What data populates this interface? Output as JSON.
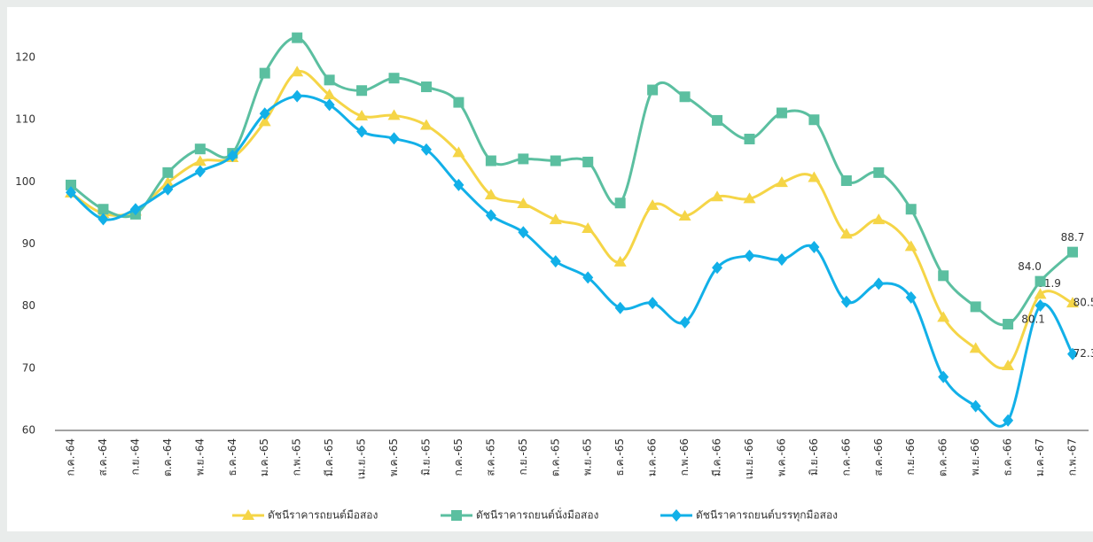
{
  "chart_data": {
    "type": "line",
    "categories": [
      "ก.ค.-64",
      "ส.ค.-64",
      "ก.ย.-64",
      "ต.ค.-64",
      "พ.ย.-64",
      "ธ.ค.-64",
      "ม.ค.-65",
      "ก.พ.-65",
      "มี.ค.-65",
      "เม.ย.-65",
      "พ.ค.-65",
      "มิ.ย.-65",
      "ก.ค.-65",
      "ส.ค.-65",
      "ก.ย.-65",
      "ต.ค.-65",
      "พ.ย.-65",
      "ธ.ค.-65",
      "ม.ค.-66",
      "ก.พ.-66",
      "มี.ค.-66",
      "เม.ย.-66",
      "พ.ค.-66",
      "มิ.ย.-66",
      "ก.ค.-66",
      "ส.ค.-66",
      "ก.ย.-66",
      "ต.ค.-66",
      "พ.ย.-66",
      "ธ.ค.-66",
      "ม.ค.-67",
      "ก.พ.-67"
    ],
    "series": [
      {
        "name": "ดัชนีราคารถยนต์มือสอง",
        "color": "#f5d547",
        "marker": "triangle",
        "values": [
          98.2,
          94.9,
          95.3,
          99.9,
          103.3,
          103.9,
          109.7,
          117.7,
          114.0,
          110.6,
          110.7,
          109.1,
          104.7,
          97.9,
          96.5,
          93.9,
          92.5,
          87.1,
          96.2,
          94.5,
          97.6,
          97.3,
          99.9,
          100.7,
          91.6,
          93.9,
          89.6,
          78.2,
          73.2,
          70.4,
          81.9,
          80.5
        ],
        "value_labels": [
          null,
          null,
          null,
          null,
          null,
          null,
          null,
          null,
          null,
          null,
          null,
          null,
          null,
          null,
          null,
          null,
          null,
          null,
          null,
          null,
          null,
          null,
          null,
          null,
          null,
          null,
          null,
          null,
          null,
          null,
          "81.9",
          "80.5"
        ]
      },
      {
        "name": "ดัชนีราคารถยนต์นั่งมือสอง",
        "color": "#5bbfa0",
        "marker": "square",
        "values": [
          99.5,
          95.6,
          94.8,
          101.5,
          105.3,
          104.6,
          117.5,
          123.2,
          116.4,
          114.7,
          116.7,
          115.3,
          112.8,
          103.4,
          103.7,
          103.4,
          103.2,
          96.6,
          114.8,
          113.7,
          109.9,
          106.9,
          111.1,
          110.0,
          100.2,
          101.5,
          95.6,
          84.9,
          79.9,
          77.1,
          84.0,
          88.7
        ],
        "value_labels": [
          null,
          null,
          null,
          null,
          null,
          null,
          null,
          null,
          null,
          null,
          null,
          null,
          null,
          null,
          null,
          null,
          null,
          null,
          null,
          null,
          null,
          null,
          null,
          null,
          null,
          null,
          null,
          null,
          null,
          null,
          "84.0",
          "88.7"
        ]
      },
      {
        "name": "ดัชนีราคารถยนต์บรรทุกมือสอง",
        "color": "#12b0e8",
        "marker": "diamond",
        "values": [
          98.3,
          94.0,
          95.6,
          98.8,
          101.7,
          104.2,
          111.0,
          113.8,
          112.4,
          108.1,
          107.0,
          105.2,
          99.5,
          94.6,
          91.9,
          87.2,
          84.6,
          79.7,
          80.5,
          77.4,
          86.2,
          88.1,
          87.5,
          89.5,
          80.7,
          83.6,
          81.4,
          68.6,
          63.9,
          61.6,
          80.1,
          72.3
        ],
        "value_labels": [
          null,
          null,
          null,
          null,
          null,
          null,
          null,
          null,
          null,
          null,
          null,
          null,
          null,
          null,
          null,
          null,
          null,
          null,
          null,
          null,
          null,
          null,
          null,
          null,
          null,
          null,
          null,
          null,
          null,
          null,
          "80.1",
          "72.3"
        ]
      }
    ],
    "ylim": [
      60,
      125
    ],
    "yticks": [
      60,
      70,
      80,
      90,
      100,
      110,
      120
    ],
    "grid": false
  }
}
